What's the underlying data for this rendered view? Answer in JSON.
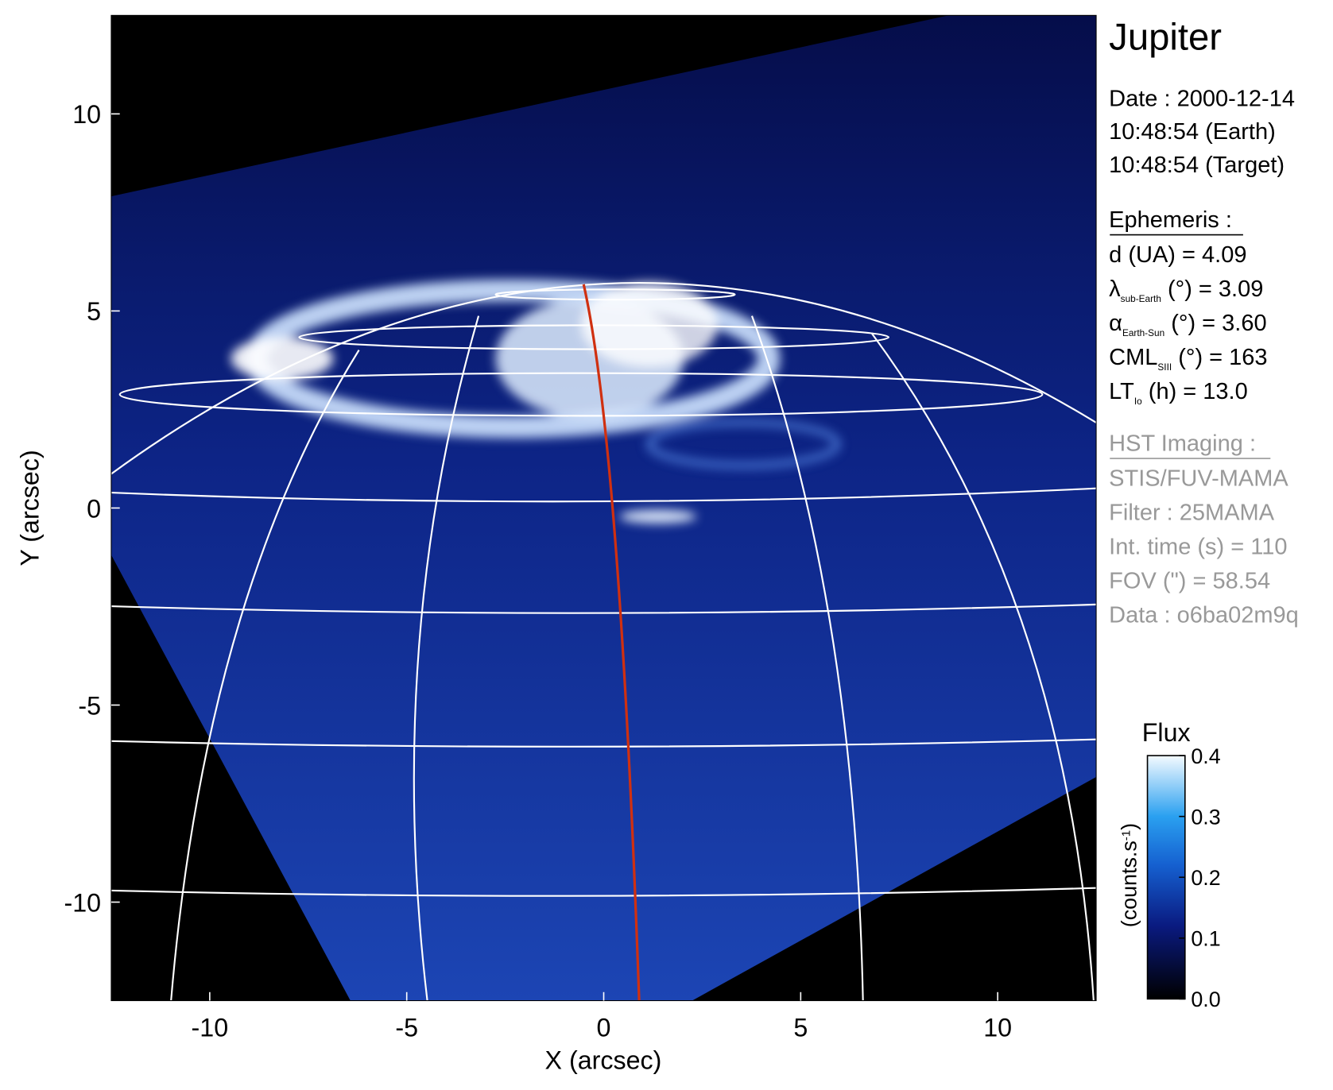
{
  "chart_data": {
    "type": "image",
    "xlabel": "X (arcsec)",
    "ylabel": "Y (arcsec)",
    "xlim": [
      -12.5,
      12.5
    ],
    "ylim": [
      -12.5,
      12.5
    ],
    "xticks": [
      -10,
      -5,
      0,
      5,
      10
    ],
    "yticks": [
      -10,
      -5,
      0,
      5,
      10
    ],
    "colorbar": {
      "title": "Flux",
      "label": [
        "(counts.s",
        "-1",
        ")"
      ],
      "lim": [
        0,
        0.4
      ],
      "ticks": [
        {
          "value": 0,
          "label": "0.0"
        },
        0.1,
        0.2,
        0.3,
        0.4
      ]
    }
  },
  "panel": {
    "title": "Jupiter",
    "date": [
      "Date : 2000-12-14",
      "10:48:54 (Earth)",
      "10:48:54 (Target)"
    ],
    "ephemeris_heading": "Ephemeris :",
    "ephemeris": [
      [
        "d (UA)    = 4.09"
      ],
      [
        "λ",
        "sub-Earth",
        " (°) = 3.09"
      ],
      [
        "α",
        "Earth-Sun",
        " (°) = 3.60"
      ],
      [
        "CML",
        "SIII",
        " (°) = 163"
      ],
      [
        "LT",
        "Io",
        " (h) = 13.0"
      ]
    ],
    "imaging_heading": "HST Imaging :",
    "imaging": [
      "STIS/FUV-MAMA",
      "Filter : 25MAMA",
      "Int. time (s) = 110",
      "FOV (\") = 58.54",
      "Data : o6ba02m9q"
    ]
  }
}
